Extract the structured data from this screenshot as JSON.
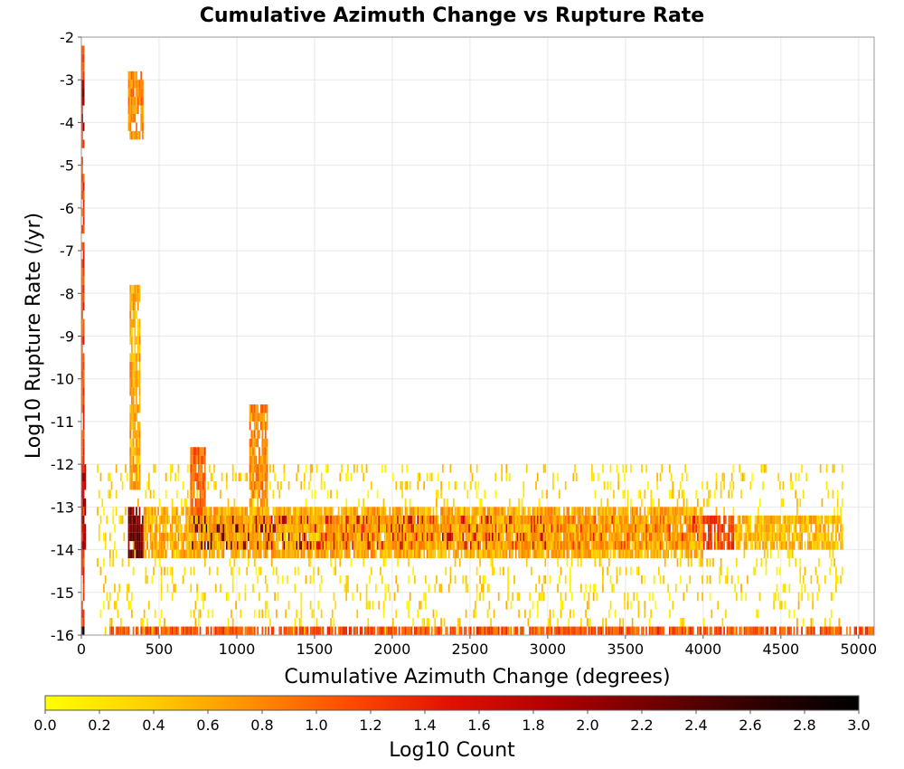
{
  "chart_data": {
    "type": "heatmap",
    "title": "Cumulative Azimuth Change vs Rupture Rate",
    "xlabel": "Cumulative Azimuth Change (degrees)",
    "ylabel": "Log10 Rupture Rate (/yr)",
    "xlim": [
      0,
      5100
    ],
    "ylim": [
      -16,
      -2
    ],
    "x_ticks": [
      0,
      500,
      1000,
      1500,
      2000,
      2500,
      3000,
      3500,
      4000,
      4500,
      5000
    ],
    "y_ticks": [
      -2,
      -3,
      -4,
      -5,
      -6,
      -7,
      -8,
      -9,
      -10,
      -11,
      -12,
      -13,
      -14,
      -15,
      -16
    ],
    "grid": true,
    "colorbar": {
      "label": "Log10 Count",
      "range": [
        0.0,
        3.0
      ],
      "ticks": [
        "0.0",
        "0.2",
        "0.4",
        "0.6",
        "0.8",
        "1.0",
        "1.2",
        "1.4",
        "1.6",
        "1.8",
        "2.0",
        "2.2",
        "2.4",
        "2.6",
        "2.8",
        "3.0"
      ],
      "colors": [
        "#ffff00",
        "#ffd000",
        "#ff9000",
        "#ff4a00",
        "#e01000",
        "#b00000",
        "#700000",
        "#300000",
        "#000000"
      ]
    },
    "bin_width_x": 10,
    "bin_height_y": 0.2,
    "bands": [
      {
        "x0": 0,
        "x1": 20,
        "y0": -16,
        "y1": -2.2,
        "level": 1.2
      },
      {
        "x0": 0,
        "x1": 20,
        "y0": -4.2,
        "y1": -3.0,
        "level": 2.0
      },
      {
        "x0": 0,
        "x1": 30,
        "y0": -14.0,
        "y1": -12.0,
        "level": 1.8
      },
      {
        "x0": 300,
        "x1": 400,
        "y0": -14.2,
        "y1": -13.0,
        "level": 2.2
      },
      {
        "x0": 700,
        "x1": 1000,
        "y0": -14.0,
        "y1": -13.2,
        "level": 2.4
      },
      {
        "x0": 1000,
        "x1": 1500,
        "y0": -14.0,
        "y1": -13.2,
        "level": 2.0
      },
      {
        "x0": 1500,
        "x1": 3000,
        "y0": -14.0,
        "y1": -13.2,
        "level": 1.6
      },
      {
        "x0": 3000,
        "x1": 4200,
        "y0": -14.0,
        "y1": -13.2,
        "level": 1.2
      },
      {
        "x0": 4200,
        "x1": 4900,
        "y0": -14.0,
        "y1": -13.2,
        "level": 0.5
      },
      {
        "x0": 400,
        "x1": 4000,
        "y0": -14.2,
        "y1": -13.0,
        "level": 0.6
      },
      {
        "x0": 180,
        "x1": 5100,
        "y0": -16.0,
        "y1": -15.8,
        "level": 1.1
      },
      {
        "x0": 0,
        "x1": 20,
        "y0": -16.0,
        "y1": -15.8,
        "level": 2.8
      },
      {
        "x0": 300,
        "x1": 400,
        "y0": -4.4,
        "y1": -2.8,
        "level": 0.8
      },
      {
        "x0": 310,
        "x1": 380,
        "y0": -12.6,
        "y1": -7.8,
        "level": 0.6
      },
      {
        "x0": 700,
        "x1": 800,
        "y0": -13.2,
        "y1": -11.6,
        "level": 1.0
      },
      {
        "x0": 1080,
        "x1": 1200,
        "y0": -13.0,
        "y1": -10.6,
        "level": 0.8
      }
    ],
    "scatter_cells": 1400,
    "scatter_xlim": [
      100,
      4900
    ],
    "scatter_ylim": [
      -16,
      -12
    ],
    "scatter_level": [
      0.0,
      0.6
    ]
  }
}
